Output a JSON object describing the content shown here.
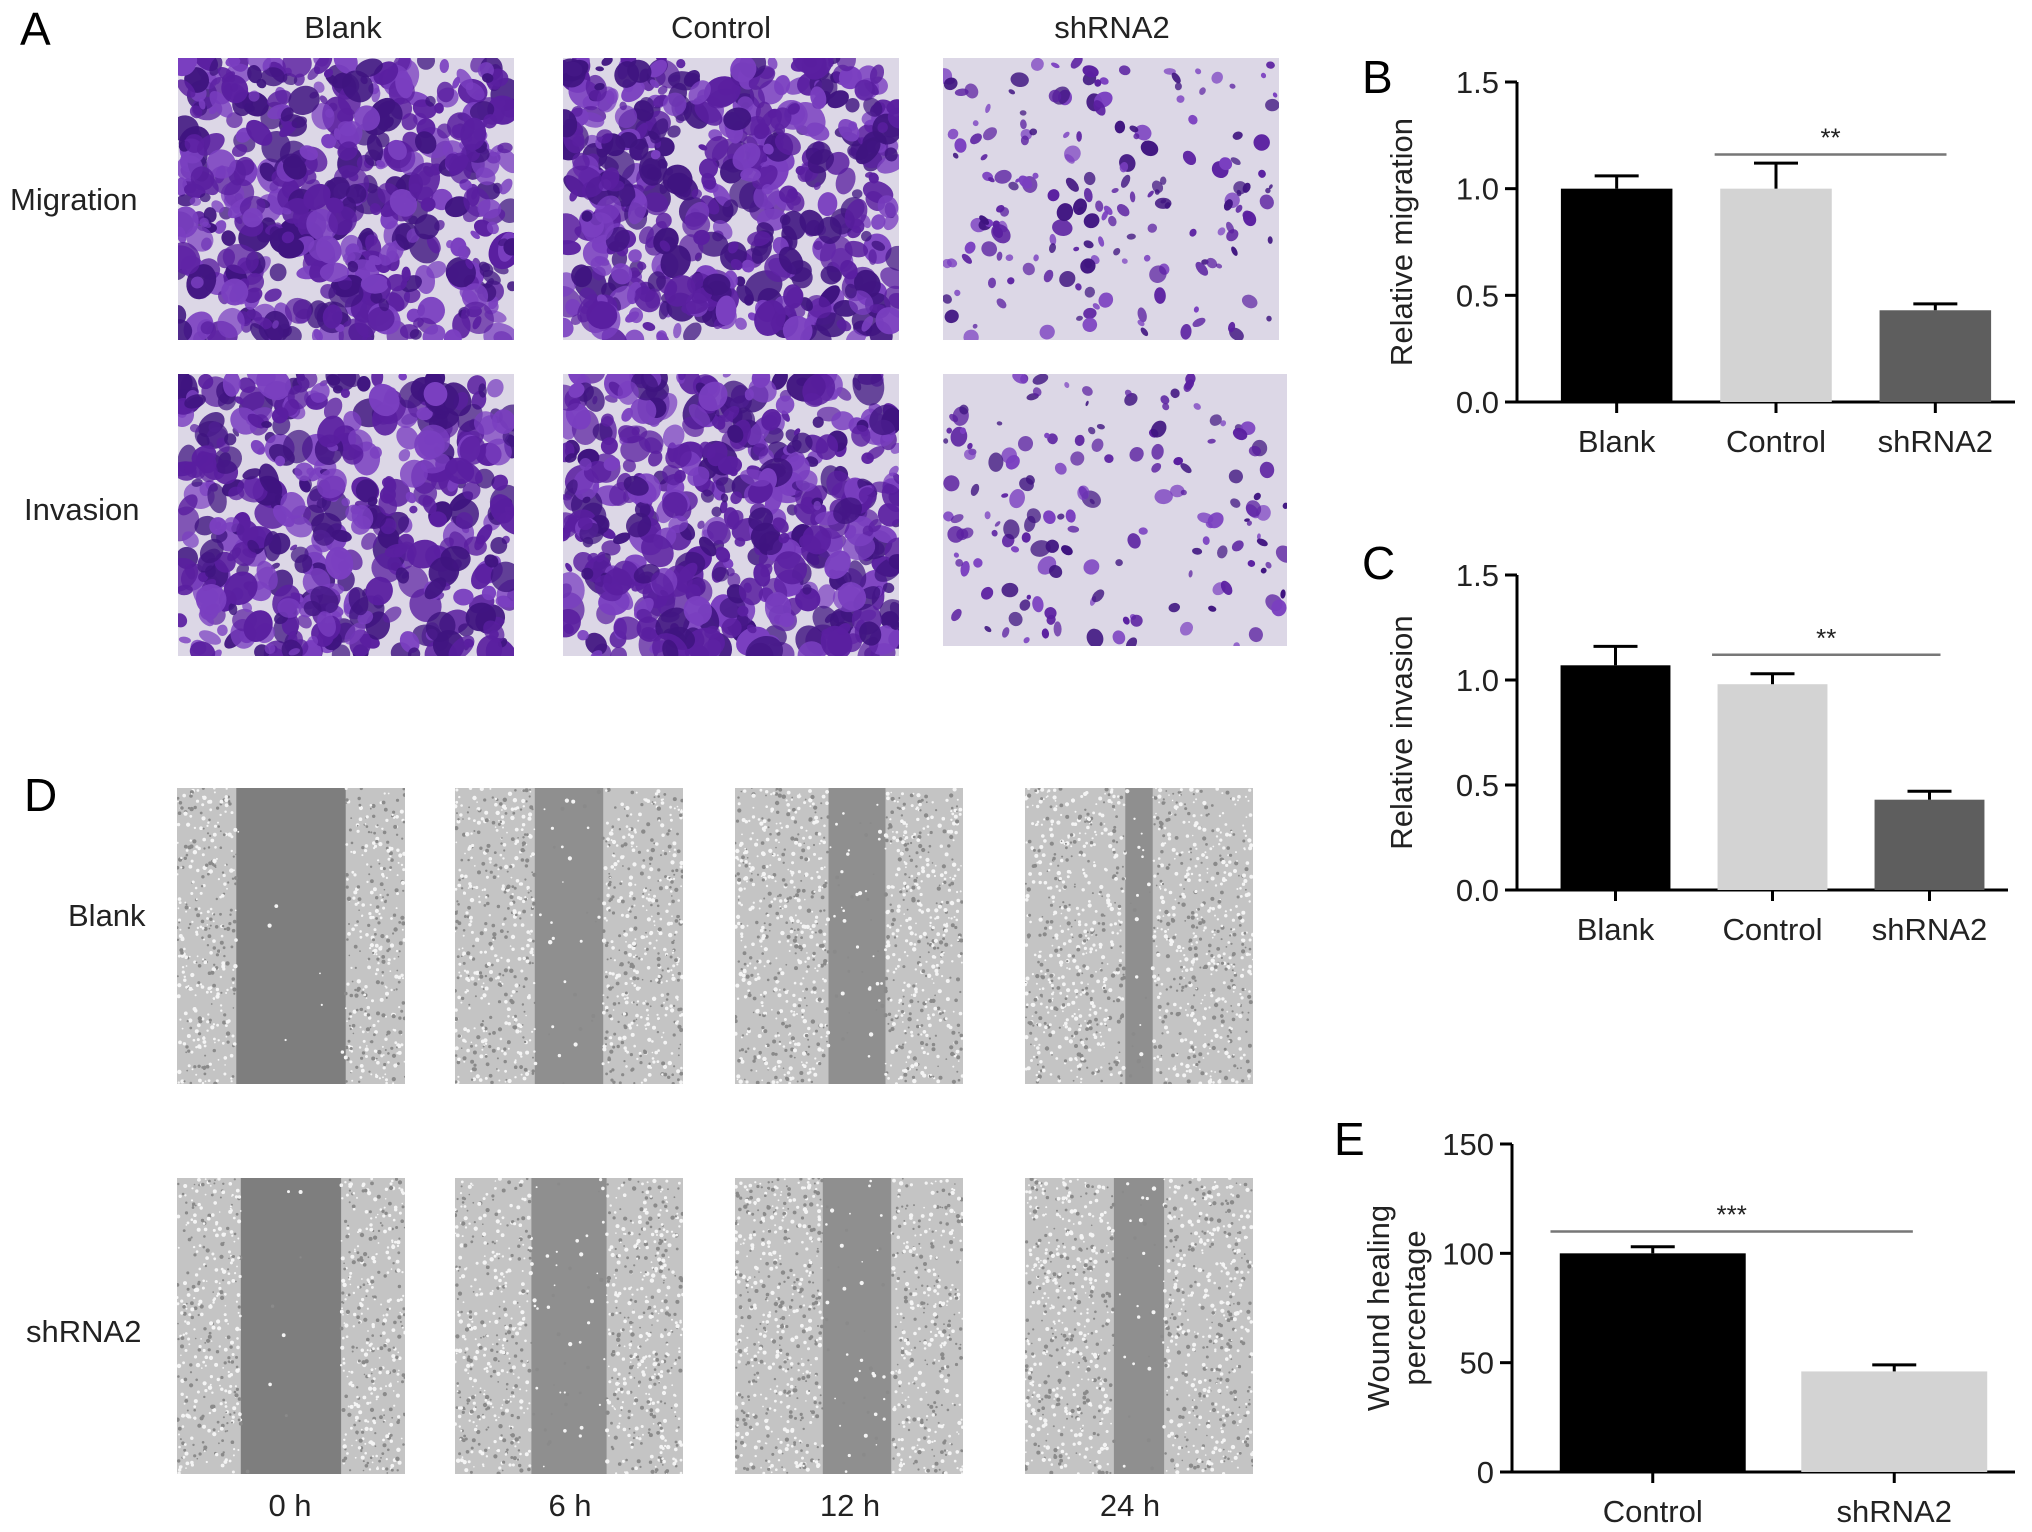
{
  "panels": {
    "a": "A",
    "b": "B",
    "c": "C",
    "d": "D",
    "e": "E"
  },
  "panel_a": {
    "columns": [
      "Blank",
      "Control",
      "shRNA2"
    ],
    "rows": [
      "Migration",
      "Invasion"
    ]
  },
  "panel_d": {
    "rows": [
      "Blank",
      "shRNA2"
    ],
    "times": [
      "0 h",
      "6 h",
      "12 h",
      "24 h"
    ]
  },
  "colors": {
    "stain": "#5a1fa0",
    "stain_bg": "#dcd7e6",
    "wound_bg": "#c4c4c4",
    "wound_gap": "#7e7e7e",
    "bar_black": "#000000",
    "bar_light": "#d3d3d3",
    "bar_dark": "#5e5e5e"
  },
  "chart_data": [
    {
      "id": "B",
      "type": "bar",
      "categories": [
        "Blank",
        "Control",
        "shRNA2"
      ],
      "values": [
        1.0,
        1.0,
        0.43
      ],
      "errors": [
        0.06,
        0.12,
        0.03
      ],
      "ylabel": "Relative migration",
      "yticks": [
        "0.0",
        "0.5",
        "1.0",
        "1.5"
      ],
      "ylim": [
        0,
        1.5
      ],
      "significance": {
        "from": 1,
        "to": 2,
        "label": "**",
        "y": 1.16
      }
    },
    {
      "id": "C",
      "type": "bar",
      "categories": [
        "Blank",
        "Control",
        "shRNA2"
      ],
      "values": [
        1.07,
        0.98,
        0.43
      ],
      "errors": [
        0.09,
        0.05,
        0.04
      ],
      "ylabel": "Relative invasion",
      "yticks": [
        "0.0",
        "0.5",
        "1.0",
        "1.5"
      ],
      "ylim": [
        0,
        1.5
      ],
      "significance": {
        "from": 1,
        "to": 2,
        "label": "**",
        "y": 1.12
      }
    },
    {
      "id": "E",
      "type": "bar",
      "categories": [
        "Control",
        "shRNA2"
      ],
      "values": [
        100,
        46
      ],
      "errors": [
        3,
        3
      ],
      "ylabel": [
        "Wound healing",
        "percentage"
      ],
      "yticks": [
        "0",
        "50",
        "100",
        "150"
      ],
      "ylim": [
        0,
        150
      ],
      "significance": {
        "from": 0,
        "to": 1,
        "label": "***",
        "y": 110
      }
    }
  ]
}
